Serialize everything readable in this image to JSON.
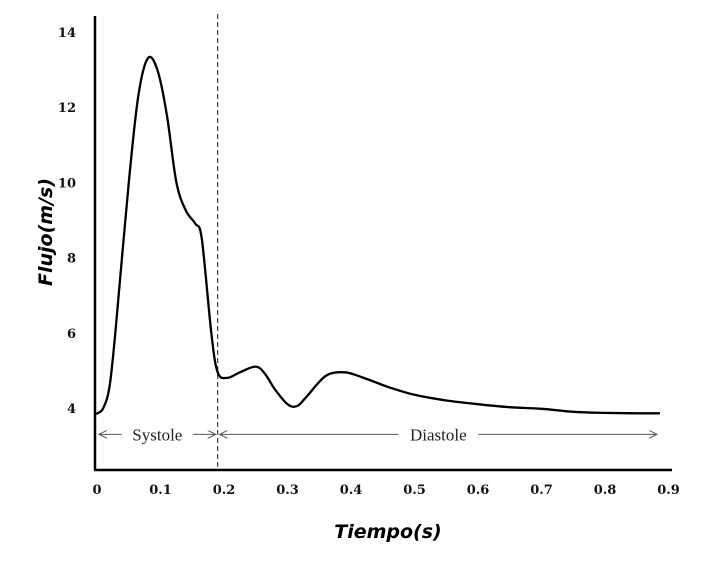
{
  "chart_data": {
    "type": "line",
    "xlabel": "Tiempo(s)",
    "ylabel": "Flujo(m/s)",
    "xlim": [
      0,
      0.9
    ],
    "ylim": [
      2.2,
      14.5
    ],
    "x_ticks": [
      "0",
      "0.1",
      "0.2",
      "0.3",
      "0.4",
      "0.5",
      "0.6",
      "0.7",
      "0.8",
      "0.9"
    ],
    "x_tick_values": [
      0,
      0.1,
      0.2,
      0.3,
      0.4,
      0.5,
      0.6,
      0.7,
      0.8,
      0.9
    ],
    "y_ticks": [
      "4",
      "6",
      "8",
      "10",
      "12",
      "14"
    ],
    "y_tick_values": [
      4,
      6,
      8,
      10,
      12,
      14
    ],
    "grid": false,
    "series": [
      {
        "color": "#000000",
        "x": [
          0.0,
          0.01,
          0.02,
          0.03,
          0.05,
          0.065,
          0.08,
          0.095,
          0.11,
          0.125,
          0.14,
          0.155,
          0.165,
          0.18,
          0.19,
          0.205,
          0.225,
          0.25,
          0.265,
          0.28,
          0.3,
          0.315,
          0.33,
          0.36,
          0.39,
          0.42,
          0.46,
          0.5,
          0.55,
          0.6,
          0.65,
          0.7,
          0.75,
          0.8,
          0.85,
          0.885
        ],
        "y": [
          3.85,
          4.0,
          4.6,
          6.2,
          10.0,
          12.3,
          13.3,
          13.0,
          11.8,
          10.0,
          9.25,
          8.9,
          8.5,
          6.0,
          4.95,
          4.8,
          4.95,
          5.1,
          4.9,
          4.5,
          4.1,
          4.05,
          4.3,
          4.85,
          4.95,
          4.8,
          4.55,
          4.35,
          4.2,
          4.1,
          4.02,
          3.98,
          3.9,
          3.87,
          3.86,
          3.86
        ]
      }
    ],
    "phase_divider_x": 0.19,
    "annotations": [
      {
        "label": "Systole",
        "x_start": 0.0,
        "x_end": 0.19,
        "y": 3.3
      },
      {
        "label": "Diastole",
        "x_start": 0.19,
        "x_end": 0.885,
        "y": 3.3
      }
    ]
  }
}
